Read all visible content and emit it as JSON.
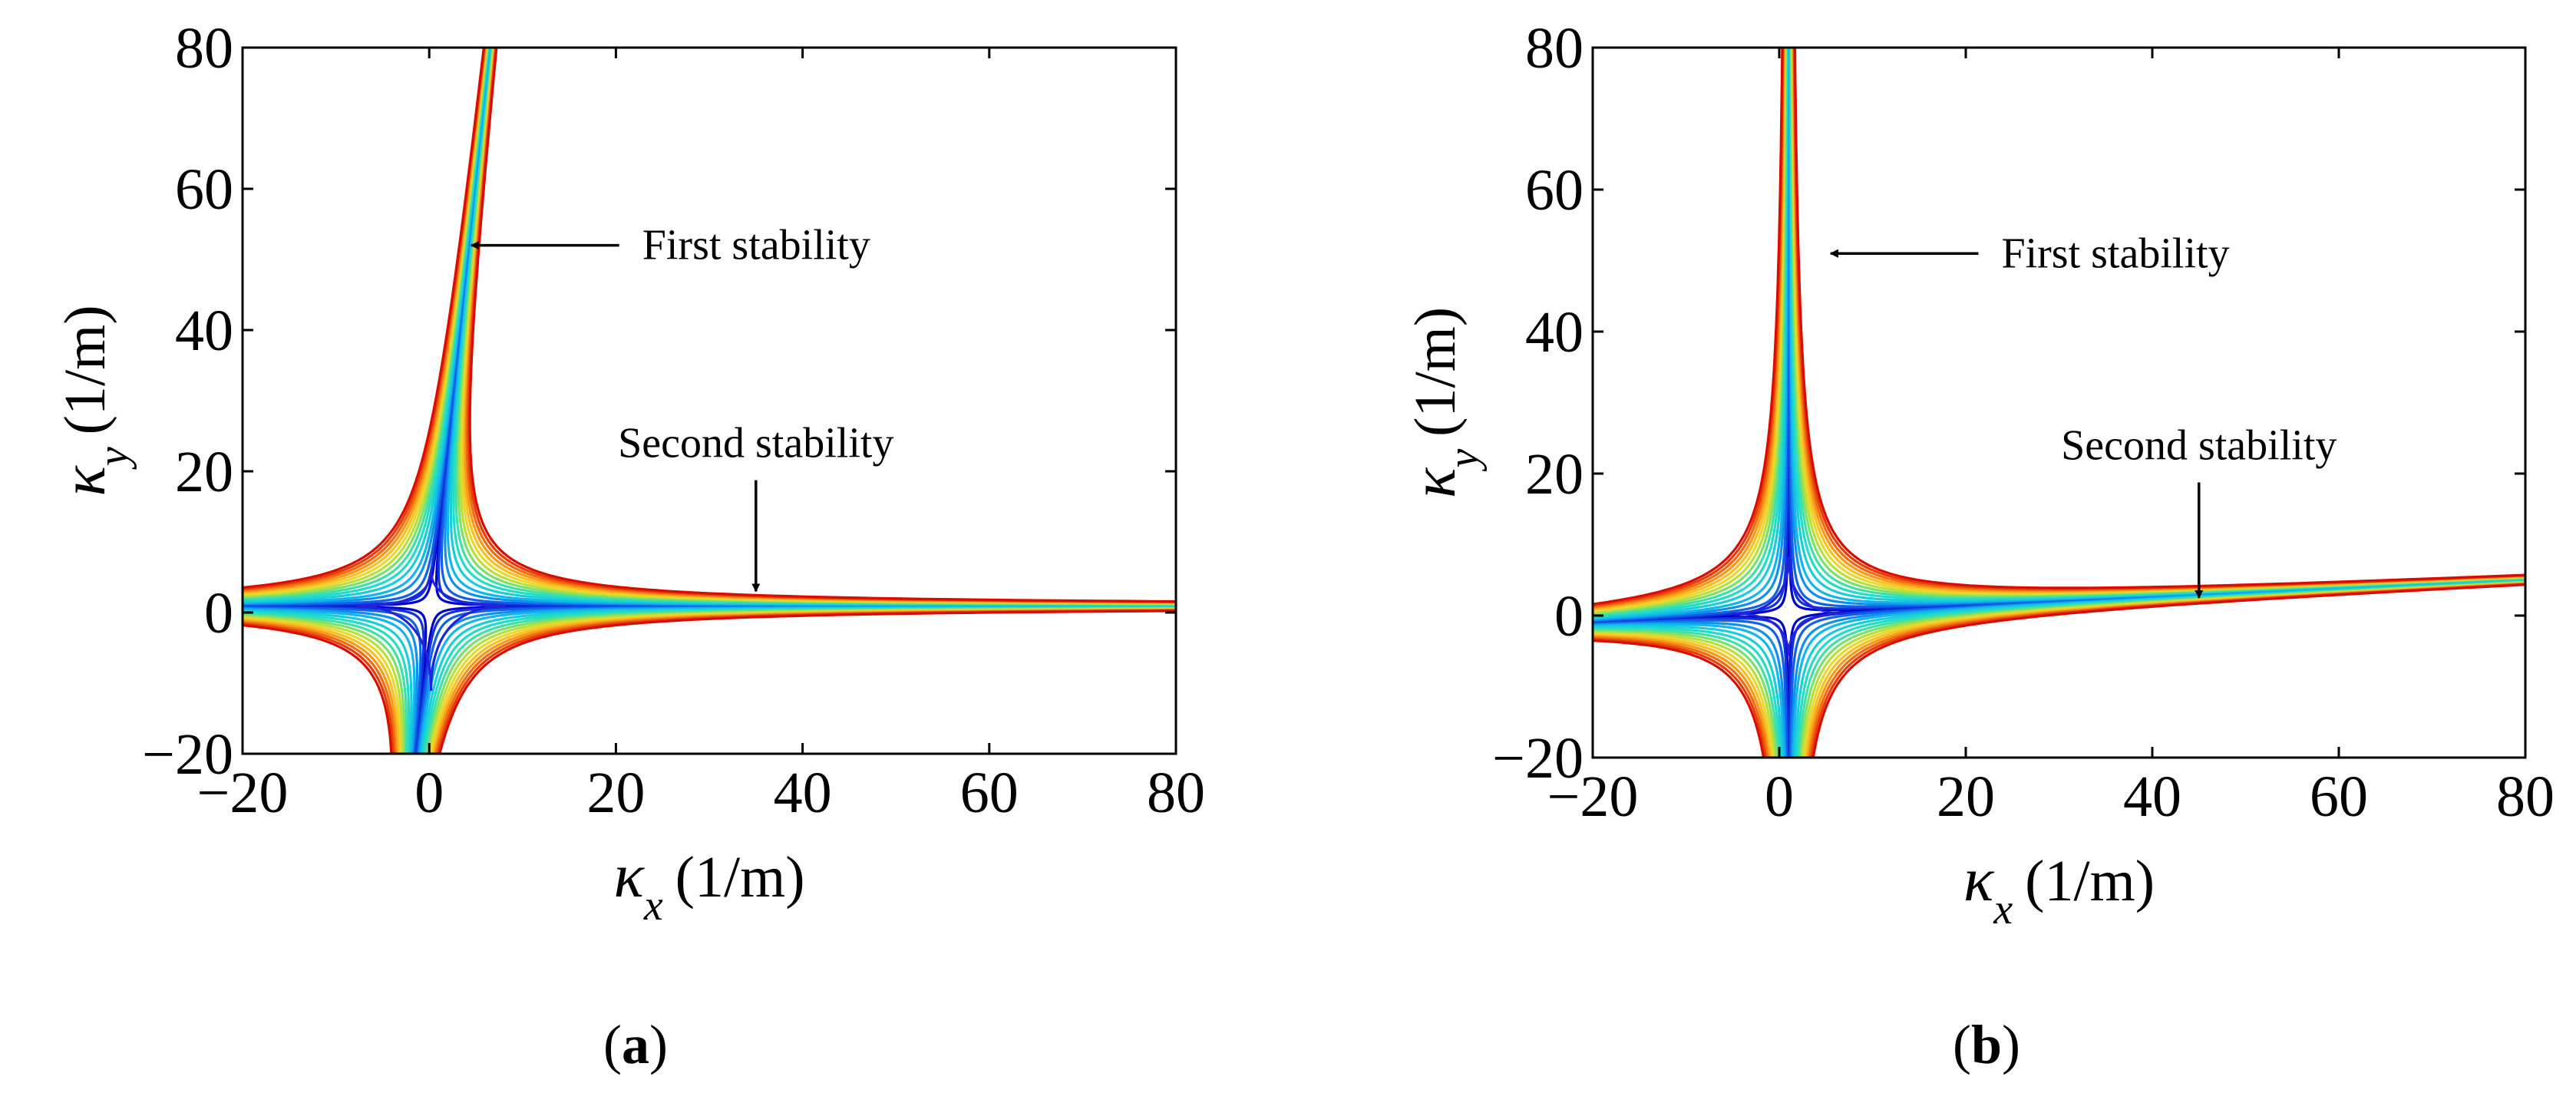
{
  "chart_data": [
    {
      "type": "contour",
      "panel_label": "a",
      "xlabel": {
        "symbol": "κ",
        "subscript": "x",
        "unit": "(1/m)"
      },
      "ylabel": {
        "symbol": "κ",
        "subscript": "y",
        "unit": "(1/m)"
      },
      "xlim": [
        -20,
        80
      ],
      "ylim": [
        -20,
        80
      ],
      "xticks": [
        "−20",
        "0",
        "20",
        "40",
        "60",
        "80"
      ],
      "yticks": [
        "−20",
        "0",
        "20",
        "40",
        "60",
        "80"
      ],
      "xtick_values": [
        -20,
        0,
        20,
        40,
        60,
        80
      ],
      "ytick_values": [
        -20,
        0,
        20,
        40,
        60,
        80
      ],
      "grid": false,
      "contour_levels": [
        1,
        2,
        4,
        7,
        10,
        14,
        18,
        22,
        26,
        30,
        34,
        38,
        42,
        46,
        50,
        54
      ],
      "contour_colors": [
        "#0000cd",
        "#1133dd",
        "#1060e8",
        "#1090ee",
        "#12b6ec",
        "#18ced8",
        "#22dcc6",
        "#3fe0a8",
        "#7de06a",
        "#b8e03a",
        "#e8d830",
        "#f8c020",
        "#f89818",
        "#f06a10",
        "#e83c08",
        "#d80c00"
      ],
      "shape": {
        "offset_x": 0.2,
        "offset_y": 0.9,
        "skew_x": 0.08,
        "skew_y": 0.0,
        "inner_x": 8,
        "inner_y": 5,
        "inner_y_neg": 12
      },
      "annotations": [
        {
          "text": "First stability",
          "target": [
            4.5,
            52
          ],
          "text_at": [
            22,
            52
          ]
        },
        {
          "text": "Second stability",
          "target": [
            35,
            3
          ],
          "text_at": [
            35,
            22
          ]
        }
      ]
    },
    {
      "type": "contour",
      "panel_label": "b",
      "xlabel": {
        "symbol": "κ",
        "subscript": "x",
        "unit": "(1/m)"
      },
      "ylabel": {
        "symbol": "κ",
        "subscript": "y",
        "unit": "(1/m)"
      },
      "xlim": [
        -20,
        80
      ],
      "ylim": [
        -20,
        80
      ],
      "xticks": [
        "−20",
        "0",
        "20",
        "40",
        "60",
        "80"
      ],
      "yticks": [
        "−20",
        "0",
        "20",
        "40",
        "60",
        "80"
      ],
      "xtick_values": [
        -20,
        0,
        20,
        40,
        60,
        80
      ],
      "ytick_values": [
        -20,
        0,
        20,
        40,
        60,
        80
      ],
      "grid": false,
      "contour_levels": [
        1,
        2,
        4,
        7,
        10,
        14,
        18,
        22,
        26,
        30,
        34,
        38,
        42,
        46,
        50,
        54
      ],
      "contour_colors": [
        "#0000cd",
        "#1133dd",
        "#1060e8",
        "#1090ee",
        "#12b6ec",
        "#18ced8",
        "#22dcc6",
        "#3fe0a8",
        "#7de06a",
        "#b8e03a",
        "#e8d830",
        "#f8c020",
        "#f89818",
        "#f06a10",
        "#e83c08",
        "#d80c00"
      ],
      "shape": {
        "offset_x": 1.0,
        "offset_y": 0.3,
        "skew_x": 0.0,
        "skew_y": 0.06,
        "inner_x": 6,
        "inner_y": 8,
        "inner_y_neg": 6
      },
      "annotations": [
        {
          "text": "First stability",
          "target": [
            5.5,
            51
          ],
          "text_at": [
            23,
            51
          ]
        },
        {
          "text": "Second stability",
          "target": [
            45,
            2.5
          ],
          "text_at": [
            45,
            22
          ]
        }
      ]
    }
  ]
}
